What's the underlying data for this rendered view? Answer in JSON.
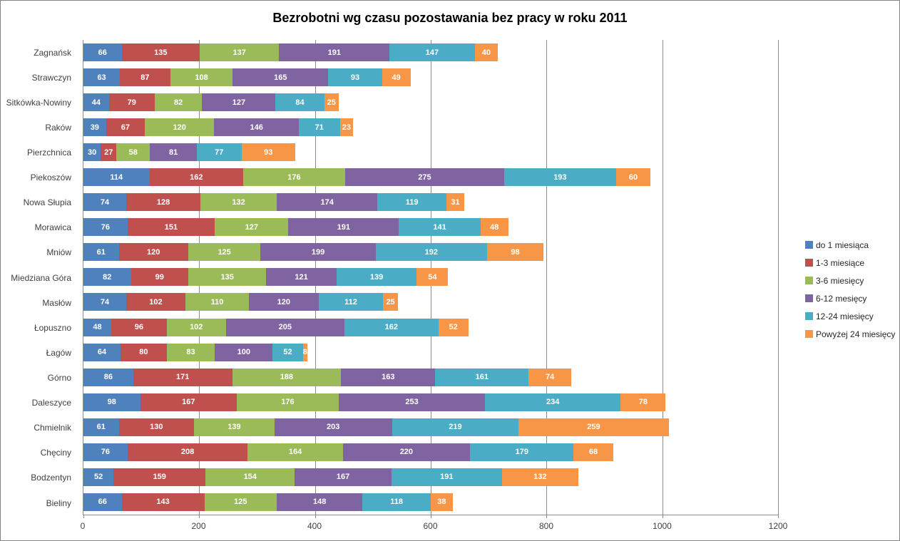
{
  "chart_data": {
    "type": "bar",
    "orientation": "horizontal",
    "stacked": true,
    "title": "Bezrobotni wg czasu pozostawania bez pracy w roku 2011",
    "categories": [
      "Zagnańsk",
      "Strawczyn",
      "Sitkówka-Nowiny",
      "Raków",
      "Pierzchnica",
      "Piekoszów",
      "Nowa Słupia",
      "Morawica",
      "Mniów",
      "Miedziana Góra",
      "Masłów",
      "Łopuszno",
      "Łagów",
      "Górno",
      "Daleszyce",
      "Chmielnik",
      "Chęciny",
      "Bodzentyn",
      "Bieliny"
    ],
    "series": [
      {
        "name": "do 1 miesiąca",
        "color": "#4F81BD",
        "values": [
          66,
          63,
          44,
          39,
          30,
          114,
          74,
          76,
          61,
          82,
          74,
          48,
          64,
          86,
          98,
          61,
          76,
          52,
          66
        ]
      },
      {
        "name": "1-3 miesiące",
        "color": "#C0504D",
        "values": [
          135,
          87,
          79,
          67,
          27,
          162,
          128,
          151,
          120,
          99,
          102,
          96,
          80,
          171,
          167,
          130,
          208,
          159,
          143
        ]
      },
      {
        "name": "3-6 miesięcy",
        "color": "#9BBB59",
        "values": [
          137,
          108,
          82,
          120,
          58,
          176,
          132,
          127,
          125,
          135,
          110,
          102,
          83,
          188,
          176,
          139,
          164,
          154,
          125
        ]
      },
      {
        "name": "6-12 mesięcy",
        "color": "#8064A2",
        "values": [
          191,
          165,
          127,
          146,
          81,
          275,
          174,
          191,
          199,
          121,
          120,
          205,
          100,
          163,
          253,
          203,
          220,
          167,
          148
        ]
      },
      {
        "name": "12-24 miesięcy",
        "color": "#4BACC6",
        "values": [
          147,
          93,
          84,
          71,
          77,
          193,
          119,
          141,
          192,
          139,
          112,
          162,
          52,
          161,
          234,
          219,
          179,
          191,
          118
        ]
      },
      {
        "name": "Powyżej 24 miesięcy",
        "color": "#F79646",
        "values": [
          40,
          49,
          25,
          23,
          93,
          60,
          31,
          48,
          98,
          54,
          25,
          52,
          8,
          74,
          78,
          259,
          68,
          132,
          38
        ]
      }
    ],
    "xlim": [
      0,
      1200
    ],
    "x_ticks": [
      0,
      200,
      400,
      600,
      800,
      1000,
      1200
    ],
    "grid": true,
    "legend_position": "right",
    "show_value_labels": true
  },
  "colors": {
    "grid": "#8C8C8C",
    "axis": "#8C8C8C",
    "border": "#848484",
    "value_label": "#FFFFFF"
  }
}
